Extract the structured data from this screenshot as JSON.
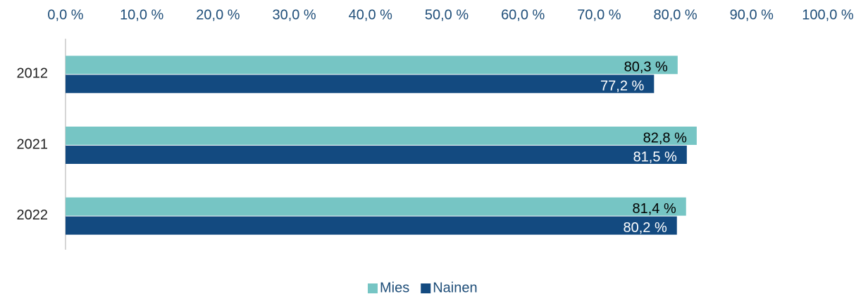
{
  "chart_data": {
    "type": "bar",
    "orientation": "horizontal",
    "categories": [
      "2012",
      "2021",
      "2022"
    ],
    "series": [
      {
        "name": "Mies",
        "color": "#76c5c4",
        "values": [
          80.3,
          82.8,
          81.4
        ],
        "value_labels": [
          "80,3 %",
          "82,8 %",
          "81,4 %"
        ]
      },
      {
        "name": "Nainen",
        "color": "#134a80",
        "values": [
          77.2,
          81.5,
          80.2
        ],
        "value_labels": [
          "77,2 %",
          "81,5 %",
          "80,2 %"
        ]
      }
    ],
    "xlim": [
      0,
      100
    ],
    "xticks": [
      {
        "value": 0,
        "label": "0,0 %"
      },
      {
        "value": 10,
        "label": "10,0 %"
      },
      {
        "value": 20,
        "label": "20,0 %"
      },
      {
        "value": 30,
        "label": "30,0 %"
      },
      {
        "value": 40,
        "label": "40,0 %"
      },
      {
        "value": 50,
        "label": "50,0 %"
      },
      {
        "value": 60,
        "label": "60,0 %"
      },
      {
        "value": 70,
        "label": "70,0 %"
      },
      {
        "value": 80,
        "label": "80,0 %"
      },
      {
        "value": 90,
        "label": "90,0 %"
      },
      {
        "value": 100,
        "label": "100,0 %"
      }
    ],
    "legend": "bottom"
  }
}
